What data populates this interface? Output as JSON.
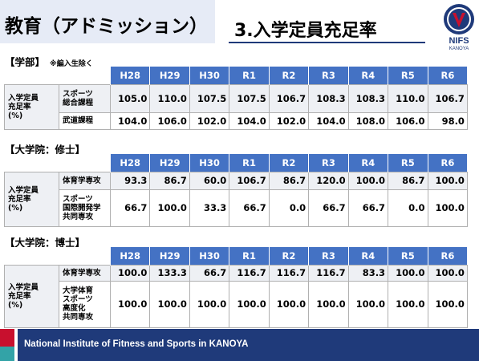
{
  "header": {
    "title": "教育（アドミッション）",
    "slide_title": "3.入学定員充足率"
  },
  "logo": {
    "text": "NIFS",
    "subtext": "KANOYA"
  },
  "columns": [
    "H28",
    "H29",
    "H30",
    "R1",
    "R2",
    "R3",
    "R4",
    "R5",
    "R6"
  ],
  "sections": {
    "undergrad": {
      "label": "【学部】",
      "note": "※編入生除く",
      "group_label": "入学定員\n充足率\n(%)",
      "rows": [
        {
          "label": "スポーツ\n総合課程",
          "values": [
            "105.0",
            "110.0",
            "107.5",
            "107.5",
            "106.7",
            "108.3",
            "108.3",
            "110.0",
            "106.7"
          ]
        },
        {
          "label": "武道課程",
          "values": [
            "104.0",
            "106.0",
            "102.0",
            "104.0",
            "102.0",
            "104.0",
            "108.0",
            "106.0",
            "98.0"
          ]
        }
      ]
    },
    "masters": {
      "label": "【大学院：修士】",
      "group_label": "入学定員\n充足率\n(%)",
      "rows": [
        {
          "label": "体育学専攻",
          "values": [
            "93.3",
            "86.7",
            "60.0",
            "106.7",
            "86.7",
            "120.0",
            "100.0",
            "86.7",
            "100.0"
          ]
        },
        {
          "label": "スポーツ\n国際開発学\n共同専攻",
          "values": [
            "66.7",
            "100.0",
            "33.3",
            "66.7",
            "0.0",
            "66.7",
            "66.7",
            "0.0",
            "100.0"
          ]
        }
      ]
    },
    "doctoral": {
      "label": "【大学院：博士】",
      "group_label": "入学定員\n充足率\n(%)",
      "rows": [
        {
          "label": "体育学専攻",
          "values": [
            "100.0",
            "133.3",
            "66.7",
            "116.7",
            "116.7",
            "116.7",
            "83.3",
            "100.0",
            "100.0"
          ]
        },
        {
          "label": "大学体育\nスポーツ\n高度化\n共同専攻",
          "values": [
            "100.0",
            "100.0",
            "100.0",
            "100.0",
            "100.0",
            "100.0",
            "100.0",
            "100.0",
            "100.0"
          ]
        }
      ]
    }
  },
  "footer": {
    "text": "National Institute of Fitness and Sports in KANOYA"
  },
  "colors": {
    "header_blue": "#4472c4",
    "footer_navy": "#1f3a7a",
    "accent_red": "#c8102e",
    "accent_teal": "#33a3a7"
  }
}
